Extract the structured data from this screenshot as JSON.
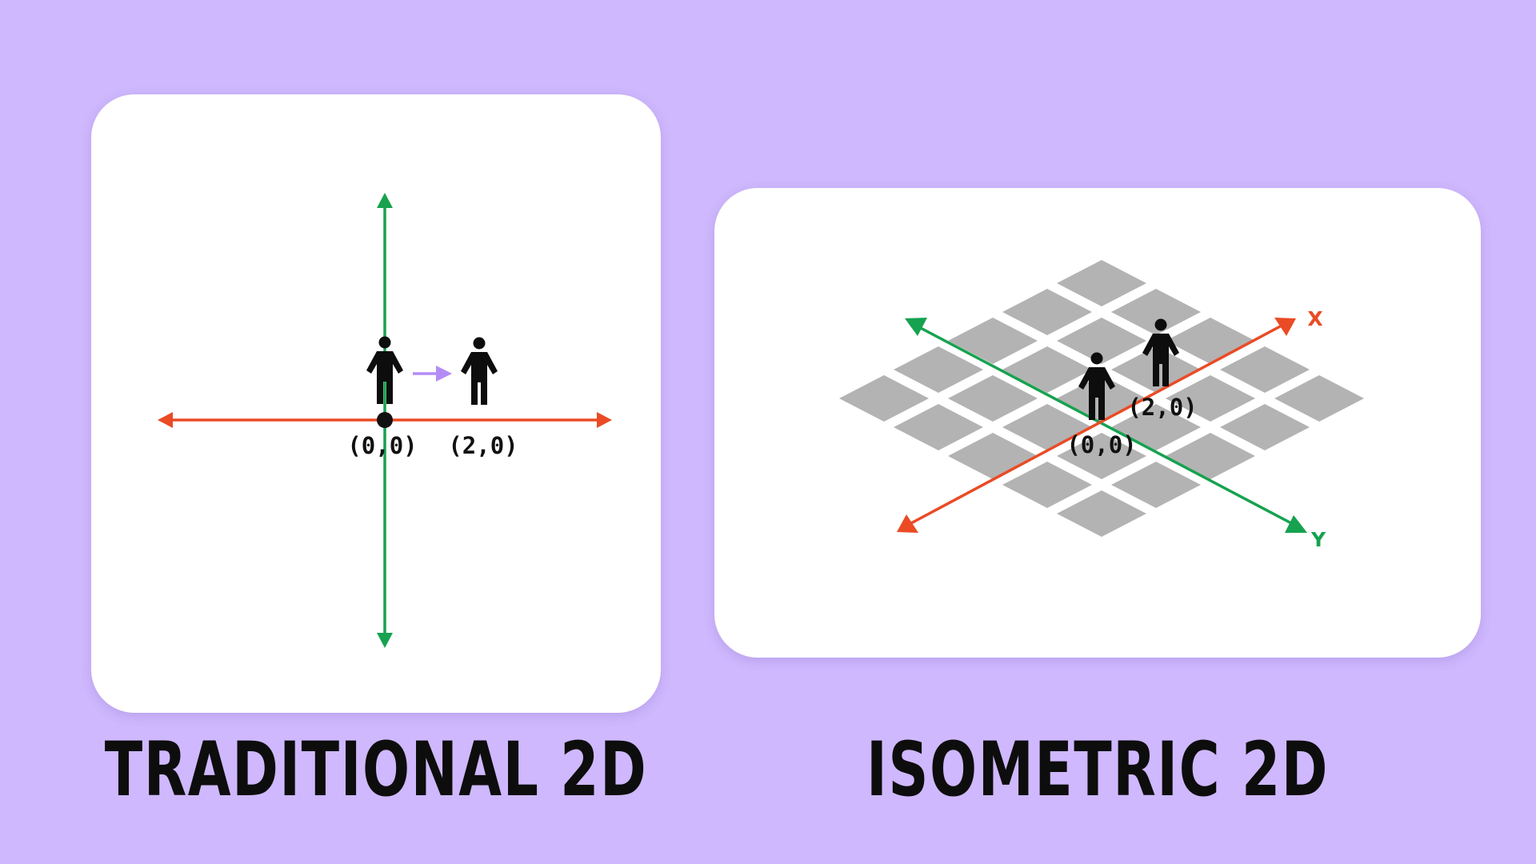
{
  "traditional": {
    "caption": "TRADITIONAL 2D",
    "origin_label": "(0,0)",
    "target_label": "(2,0)"
  },
  "isometric": {
    "caption": "ISOMETRIC 2D",
    "origin_label": "(0,0)",
    "target_label": "(2,0)",
    "x_axis_label": "X",
    "y_axis_label": "Y"
  },
  "colors": {
    "background": "#cfb8fd",
    "card": "#ffffff",
    "x_axis": "#ea4b25",
    "y_axis": "#16a24f",
    "move_arrow": "#b48cf6",
    "tile": "#b3b3b3",
    "figure": "#0d0d0d"
  }
}
